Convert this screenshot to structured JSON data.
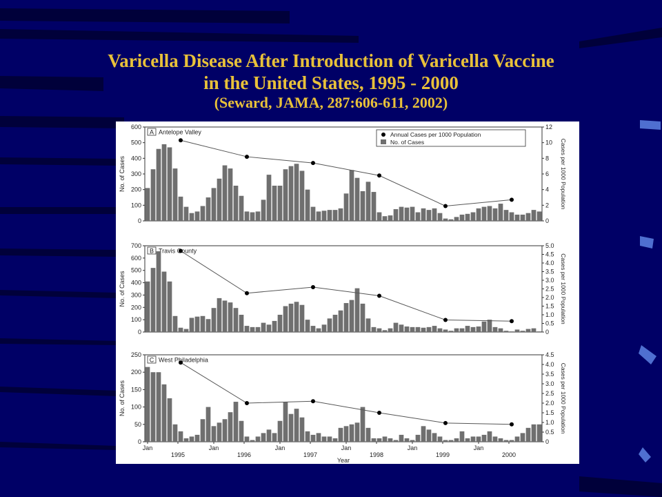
{
  "slide": {
    "title_line1": "Varicella Disease After Introduction of Varicella Vaccine",
    "title_line2": "in the United States, 1995 - 2000",
    "citation": "(Seward, JAMA, 287:606-611, 2002)",
    "background_color": "#000066",
    "title_color": "#e8c13a"
  },
  "chart_data": {
    "type": "bar",
    "x_tick_labels": [
      {
        "month": 0,
        "label": "Jan"
      },
      {
        "month": 6,
        "label": "1995"
      },
      {
        "month": 12,
        "label": "Jan"
      },
      {
        "month": 18,
        "label": "1996"
      },
      {
        "month": 24,
        "label": "Jan"
      },
      {
        "month": 30,
        "label": "1997"
      },
      {
        "month": 36,
        "label": "Jan"
      },
      {
        "month": 42,
        "label": "1998"
      },
      {
        "month": 48,
        "label": "Jan"
      },
      {
        "month": 54,
        "label": "1999"
      },
      {
        "month": 60,
        "label": "Jan"
      },
      {
        "month": 66,
        "label": "2000"
      }
    ],
    "xlabel": "Year",
    "legend": [
      "Annual Cases per 1000 Population",
      "No. of Cases"
    ],
    "legend_placement": "top-right",
    "panels": [
      {
        "label": "A",
        "name": "Antelope Valley",
        "ylabel": "No. of Cases",
        "ylabel_right": "Cases per 1000 Population",
        "ylim": [
          0,
          600
        ],
        "yticks": [
          0,
          100,
          200,
          300,
          400,
          500,
          600
        ],
        "ylim_right": [
          0,
          12
        ],
        "yticks_right": [
          0,
          2,
          4,
          6,
          8,
          10,
          12
        ],
        "monthly_cases": [
          210,
          330,
          460,
          490,
          470,
          335,
          155,
          90,
          50,
          60,
          95,
          150,
          210,
          270,
          355,
          335,
          225,
          160,
          60,
          55,
          60,
          135,
          295,
          225,
          225,
          330,
          350,
          365,
          320,
          200,
          90,
          60,
          65,
          70,
          70,
          80,
          175,
          325,
          275,
          190,
          250,
          185,
          55,
          30,
          35,
          75,
          90,
          85,
          90,
          55,
          80,
          70,
          80,
          50,
          15,
          10,
          25,
          40,
          45,
          55,
          80,
          90,
          95,
          80,
          110,
          70,
          55,
          40,
          40,
          50,
          70,
          60
        ],
        "annual_rate": [
          {
            "month": 6,
            "value": 10.3
          },
          {
            "month": 18,
            "value": 8.2
          },
          {
            "month": 30,
            "value": 7.4
          },
          {
            "month": 42,
            "value": 5.8
          },
          {
            "month": 54,
            "value": 1.9
          },
          {
            "month": 66,
            "value": 2.7
          }
        ]
      },
      {
        "label": "B",
        "name": "Travis County",
        "ylabel": "No. of Cases",
        "ylabel_right": "Cases per 1000 Population",
        "ylim": [
          0,
          700
        ],
        "yticks": [
          0,
          100,
          200,
          300,
          400,
          500,
          600,
          700
        ],
        "ylim_right": [
          0,
          5
        ],
        "yticks_right": [
          0,
          0.5,
          1.0,
          1.5,
          2.0,
          2.5,
          3.0,
          3.5,
          4.0,
          4.5,
          5.0
        ],
        "monthly_cases": [
          410,
          520,
          655,
          490,
          410,
          130,
          35,
          25,
          115,
          125,
          130,
          105,
          195,
          275,
          255,
          240,
          195,
          140,
          50,
          40,
          40,
          75,
          60,
          90,
          140,
          210,
          230,
          245,
          220,
          100,
          50,
          30,
          60,
          110,
          140,
          175,
          235,
          260,
          355,
          230,
          110,
          40,
          30,
          15,
          30,
          75,
          60,
          45,
          40,
          40,
          35,
          40,
          50,
          30,
          20,
          10,
          30,
          30,
          50,
          40,
          45,
          85,
          100,
          40,
          30,
          10,
          5,
          20,
          10,
          25,
          30,
          5
        ],
        "annual_rate": [
          {
            "month": 6,
            "value": 4.7
          },
          {
            "month": 18,
            "value": 2.25
          },
          {
            "month": 30,
            "value": 2.6
          },
          {
            "month": 42,
            "value": 2.1
          },
          {
            "month": 54,
            "value": 0.7
          },
          {
            "month": 66,
            "value": 0.63
          }
        ]
      },
      {
        "label": "C",
        "name": "West Philadelphia",
        "ylabel": "No. of Cases",
        "ylabel_right": "Cases per 1000 Population",
        "ylim": [
          0,
          250
        ],
        "yticks": [
          0,
          50,
          100,
          150,
          200,
          250
        ],
        "ylim_right": [
          0,
          4.5
        ],
        "yticks_right": [
          0,
          0.5,
          1.0,
          1.5,
          2.0,
          2.5,
          3.0,
          3.5,
          4.0,
          4.5
        ],
        "monthly_cases": [
          215,
          200,
          200,
          165,
          125,
          50,
          30,
          10,
          15,
          20,
          65,
          100,
          45,
          55,
          65,
          85,
          115,
          60,
          15,
          5,
          15,
          25,
          35,
          25,
          60,
          115,
          80,
          95,
          70,
          30,
          20,
          25,
          15,
          15,
          10,
          40,
          45,
          50,
          55,
          100,
          40,
          10,
          10,
          15,
          10,
          5,
          20,
          10,
          5,
          20,
          45,
          35,
          25,
          15,
          5,
          5,
          10,
          30,
          10,
          15,
          15,
          20,
          30,
          15,
          10,
          5,
          5,
          15,
          25,
          40,
          50,
          50
        ],
        "annual_rate": [
          {
            "month": 6,
            "value": 4.1
          },
          {
            "month": 18,
            "value": 2.0
          },
          {
            "month": 30,
            "value": 2.1
          },
          {
            "month": 42,
            "value": 1.5
          },
          {
            "month": 54,
            "value": 0.97
          },
          {
            "month": 66,
            "value": 0.9
          }
        ]
      }
    ]
  }
}
